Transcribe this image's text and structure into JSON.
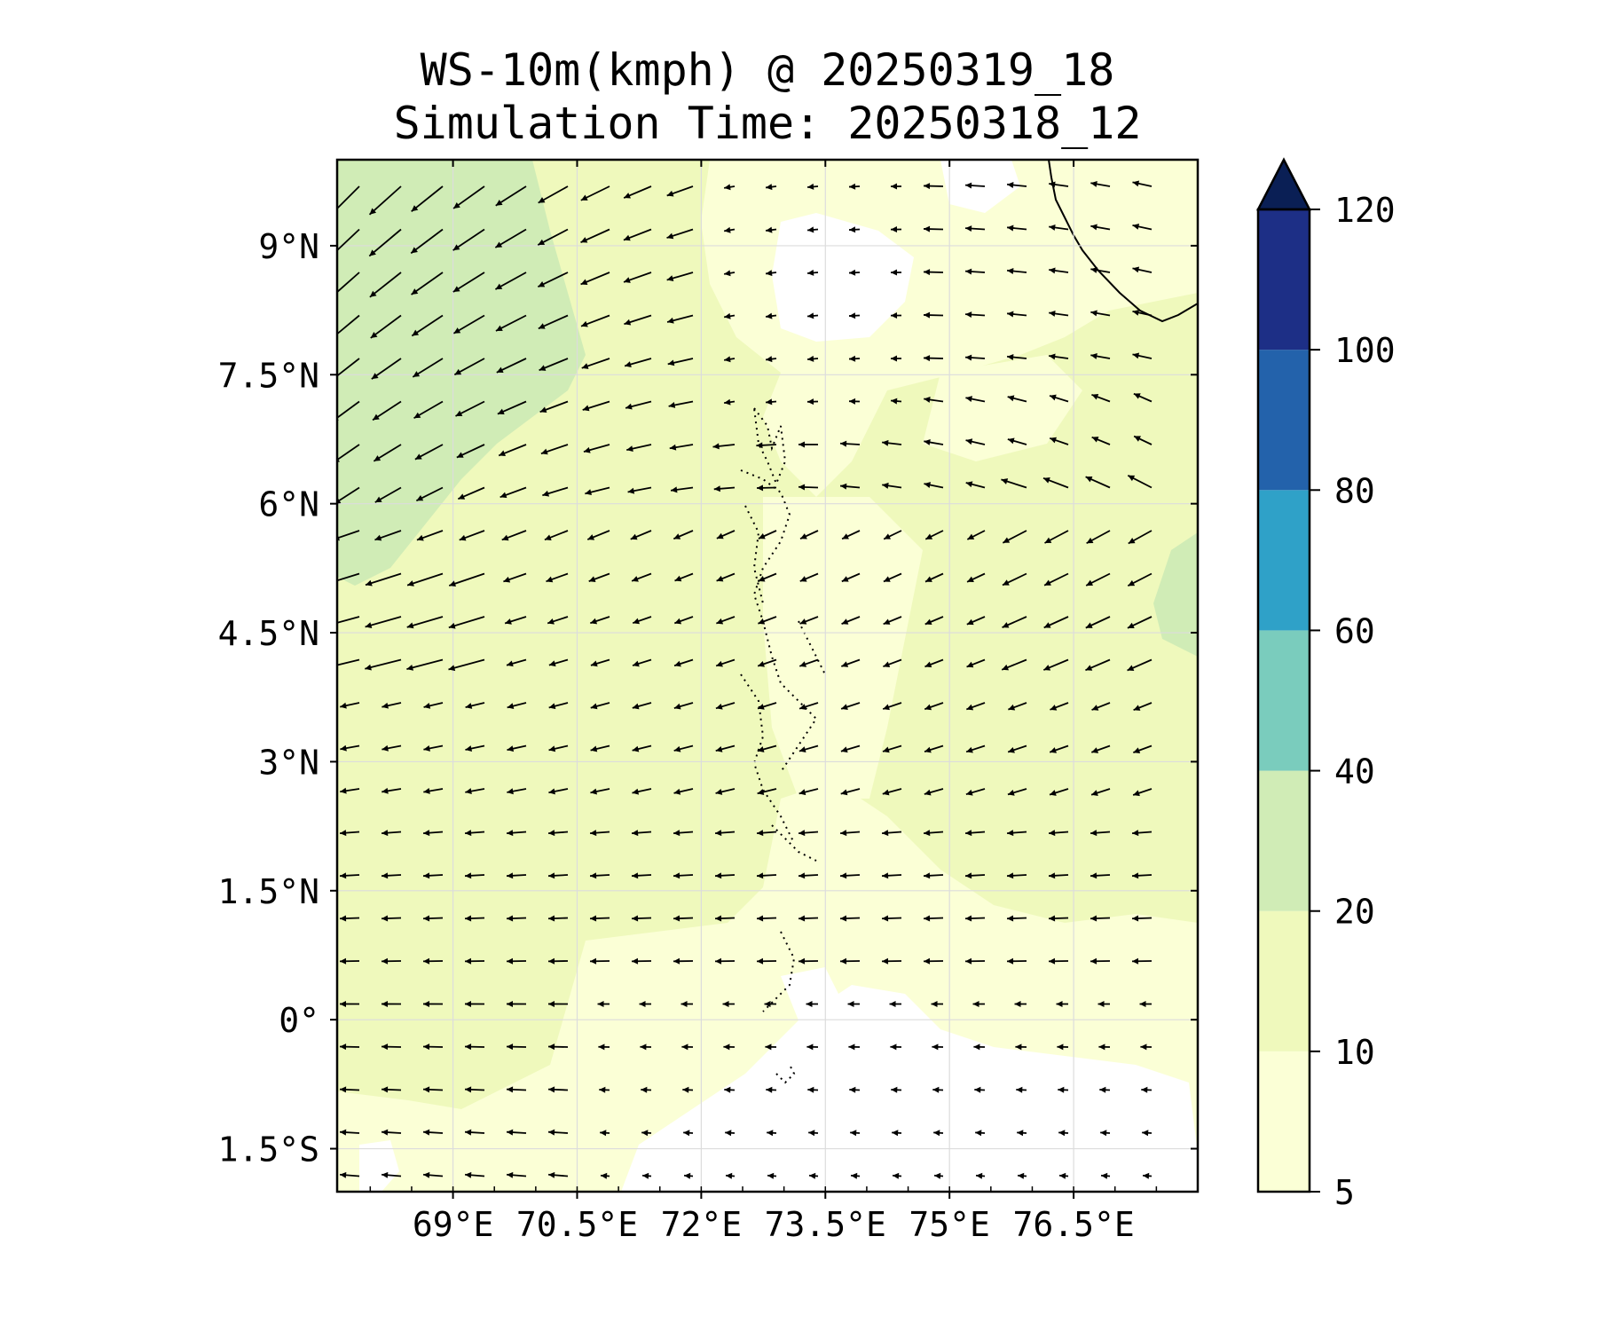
{
  "title": {
    "line1": "WS-10m(kmph) @ 20250319_18",
    "line2": "Simulation Time: 20250318_12"
  },
  "map": {
    "lon_range": [
      67.6,
      78.0
    ],
    "lat_range": [
      -2.0,
      10.0
    ],
    "x_ticks": [
      {
        "value": 69,
        "label": "69°E"
      },
      {
        "value": 70.5,
        "label": "70.5°E"
      },
      {
        "value": 72,
        "label": "72°E"
      },
      {
        "value": 73.5,
        "label": "73.5°E"
      },
      {
        "value": 75,
        "label": "75°E"
      },
      {
        "value": 76.5,
        "label": "76.5°E"
      }
    ],
    "y_ticks": [
      {
        "value": 9,
        "label": "9°N"
      },
      {
        "value": 7.5,
        "label": "7.5°N"
      },
      {
        "value": 6,
        "label": "6°N"
      },
      {
        "value": 4.5,
        "label": "4.5°N"
      },
      {
        "value": 3,
        "label": "3°N"
      },
      {
        "value": 1.5,
        "label": "1.5°N"
      },
      {
        "value": 0,
        "label": "0°"
      },
      {
        "value": -1.5,
        "label": "1.5°S"
      }
    ],
    "gridlines": true,
    "field": "wind speed 10m (kmph) with wind vectors",
    "fill_colors": {
      "lt5": "#ffffff",
      "5-10": "#fbffd6",
      "10-20": "#eff9bc",
      "20-40": "#d0ecb6"
    }
  },
  "colorbar": {
    "levels": [
      5,
      10,
      20,
      40,
      60,
      80,
      100,
      120
    ],
    "tick_labels": [
      "5",
      "10",
      "20",
      "40",
      "60",
      "80",
      "100",
      "120"
    ],
    "colors": [
      "#fbffd6",
      "#eff9bc",
      "#d0ecb6",
      "#7accbd",
      "#2fa1c8",
      "#2362ab",
      "#1d2f86"
    ],
    "extend_color": "#0a1f55",
    "extend": "max"
  }
}
